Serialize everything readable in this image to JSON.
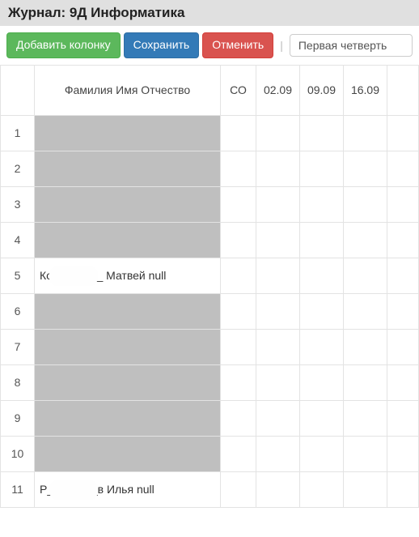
{
  "header": {
    "title": "Журнал: 9Д Информатика"
  },
  "toolbar": {
    "add_column": "Добавить колонку",
    "save": "Сохранить",
    "cancel": "Отменить",
    "period": "Первая четверть"
  },
  "columns": {
    "name": "Фамилия Имя Отчество",
    "co": "СО",
    "dates": [
      "02.09",
      "09.09",
      "16.09"
    ]
  },
  "rows": [
    {
      "n": 1,
      "name": "",
      "redacted": true
    },
    {
      "n": 2,
      "name": "",
      "redacted": true
    },
    {
      "n": 3,
      "name": "",
      "redacted": true
    },
    {
      "n": 4,
      "name": "",
      "redacted": true
    },
    {
      "n": 5,
      "name": "Ко________ Матвей null",
      "redacted": false
    },
    {
      "n": 6,
      "name": "",
      "redacted": true
    },
    {
      "n": 7,
      "name": "",
      "redacted": true
    },
    {
      "n": 8,
      "name": "",
      "redacted": true
    },
    {
      "n": 9,
      "name": "",
      "redacted": true
    },
    {
      "n": 10,
      "name": "",
      "redacted": true
    },
    {
      "n": 11,
      "name": "Р________в Илья null",
      "redacted": false
    }
  ],
  "style": {
    "btn_green": "#5cb85c",
    "btn_blue": "#337ab7",
    "btn_red": "#d9534f",
    "header_bg": "#e0e0e0",
    "border": "#e3e3e3",
    "redact": "#bfbfbf"
  }
}
